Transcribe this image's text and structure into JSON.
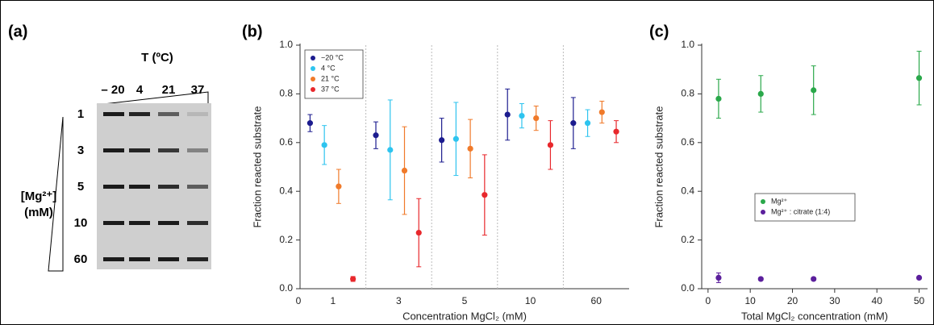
{
  "gel": {
    "label": "(a)",
    "temperature_label": "T (ºC)",
    "lanes": [
      "– 20",
      "4",
      "21",
      "37"
    ],
    "rows": [
      "1",
      "3",
      "5",
      "10",
      "60"
    ],
    "row_axis_label": "[Mg²⁺]",
    "row_axis_unit": "(mM)"
  },
  "chart_data": [
    {
      "type": "scatter",
      "label": "(b)",
      "x_label": "Concentration MgCl₂ (mM)",
      "y_label": "Fraction reacted substrate",
      "origin_label": "0",
      "categories": [
        "1",
        "3",
        "5",
        "10",
        "60"
      ],
      "separators": true,
      "ylim": [
        0,
        1
      ],
      "yticks": [
        {
          "value": 0,
          "label": "0.0"
        },
        0.2,
        0.4,
        0.6,
        0.8,
        {
          "value": 1,
          "label": "1.0"
        }
      ],
      "legend": "upper left",
      "series": [
        {
          "name": "−20 °C",
          "color": "#1c1c8f",
          "values": [
            0.68,
            0.63,
            0.61,
            0.715,
            0.68
          ],
          "errors": [
            0.035,
            0.055,
            0.09,
            0.105,
            0.105
          ]
        },
        {
          "name": "4 °C",
          "color": "#2ec4ef",
          "values": [
            0.59,
            0.57,
            0.615,
            0.71,
            0.68
          ],
          "errors": [
            0.08,
            0.205,
            0.15,
            0.05,
            0.055
          ]
        },
        {
          "name": "21 °C",
          "color": "#f07a2a",
          "values": [
            0.42,
            0.485,
            0.575,
            0.7,
            0.725
          ],
          "errors": [
            0.07,
            0.18,
            0.12,
            0.05,
            0.045
          ]
        },
        {
          "name": "37 °C",
          "color": "#e8282c",
          "values": [
            0.04,
            0.23,
            0.385,
            0.59,
            0.645
          ],
          "errors": [
            0.01,
            0.14,
            0.165,
            0.1,
            0.045
          ]
        }
      ]
    },
    {
      "type": "scatter",
      "label": "(c)",
      "x_label": "Total MgCl₂ concentration (mM)",
      "y_label": "Fraction reacted substrate",
      "x": [
        2.5,
        12.5,
        25,
        50
      ],
      "xlim": [
        -1.5,
        52
      ],
      "xticks": [
        0,
        10,
        20,
        30,
        40,
        50
      ],
      "ylim": [
        0,
        1
      ],
      "yticks": [
        {
          "value": 0,
          "label": "0.0"
        },
        0.2,
        0.4,
        0.6,
        0.8,
        {
          "value": 1,
          "label": "1.0"
        }
      ],
      "legend": "center right",
      "series": [
        {
          "name": "Mg²⁺",
          "color": "#2aa84a",
          "values": [
            0.78,
            0.8,
            0.815,
            0.865
          ],
          "errors": [
            0.08,
            0.075,
            0.1,
            0.11
          ]
        },
        {
          "name": "Mg²⁺ : citrate (1:4)",
          "color": "#5b1f9c",
          "values": [
            0.045,
            0.04,
            0.04,
            0.045
          ],
          "errors": [
            0.02,
            0.005,
            0.005,
            0.005
          ]
        }
      ]
    }
  ]
}
